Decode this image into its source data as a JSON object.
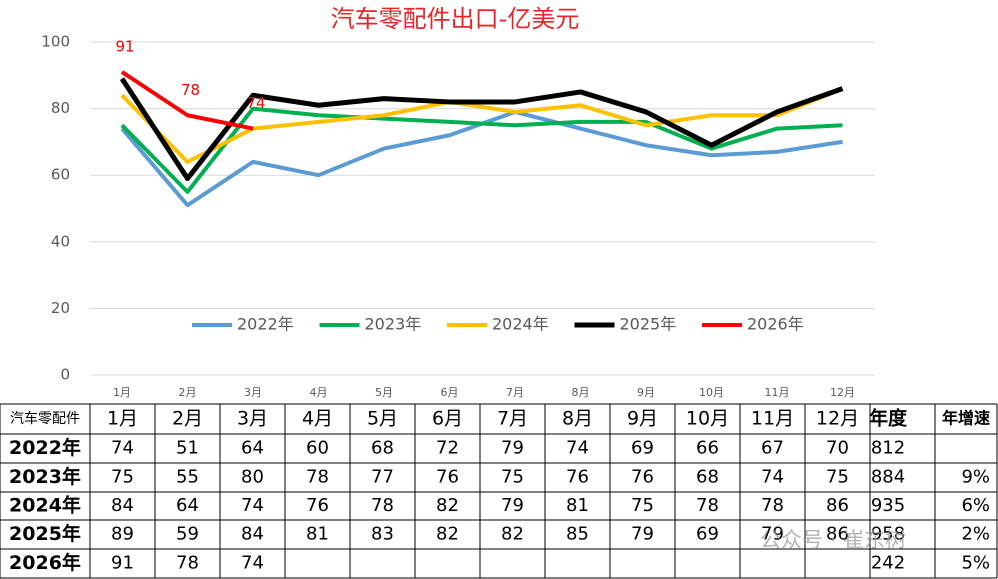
{
  "chart_data": {
    "type": "line",
    "title": "汽车零配件出口-亿美元",
    "categories": [
      "1月",
      "2月",
      "3月",
      "4月",
      "5月",
      "6月",
      "7月",
      "8月",
      "9月",
      "10月",
      "11月",
      "12月"
    ],
    "ylim": [
      0,
      100
    ],
    "yticks": [
      0,
      20,
      40,
      60,
      80,
      100
    ],
    "grid": true,
    "legend": "bottom",
    "series": [
      {
        "name": "2022年",
        "color": "#5b9bd5",
        "values": [
          74,
          51,
          64,
          60,
          68,
          72,
          79,
          74,
          69,
          66,
          67,
          70
        ]
      },
      {
        "name": "2023年",
        "color": "#00b050",
        "values": [
          75,
          55,
          80,
          78,
          77,
          76,
          75,
          76,
          76,
          68,
          74,
          75
        ]
      },
      {
        "name": "2024年",
        "color": "#ffc000",
        "values": [
          84,
          64,
          74,
          76,
          78,
          82,
          79,
          81,
          75,
          78,
          78,
          86
        ]
      },
      {
        "name": "2025年",
        "color": "#000000",
        "values": [
          89,
          59,
          84,
          81,
          83,
          82,
          82,
          85,
          79,
          69,
          79,
          86
        ]
      },
      {
        "name": "2026年",
        "color": "#ff0000",
        "values": [
          91,
          78,
          74,
          null,
          null,
          null,
          null,
          null,
          null,
          null,
          null,
          null
        ],
        "data_labels": true
      }
    ]
  },
  "table": {
    "corner": "汽车零配件",
    "total_header": "年度",
    "growth_header": "年增速",
    "totals": [
      812,
      884,
      935,
      958,
      242
    ],
    "growth": [
      null,
      "9%",
      "6%",
      "2%",
      "5%"
    ]
  },
  "watermark": "公众号 · 崔东树"
}
